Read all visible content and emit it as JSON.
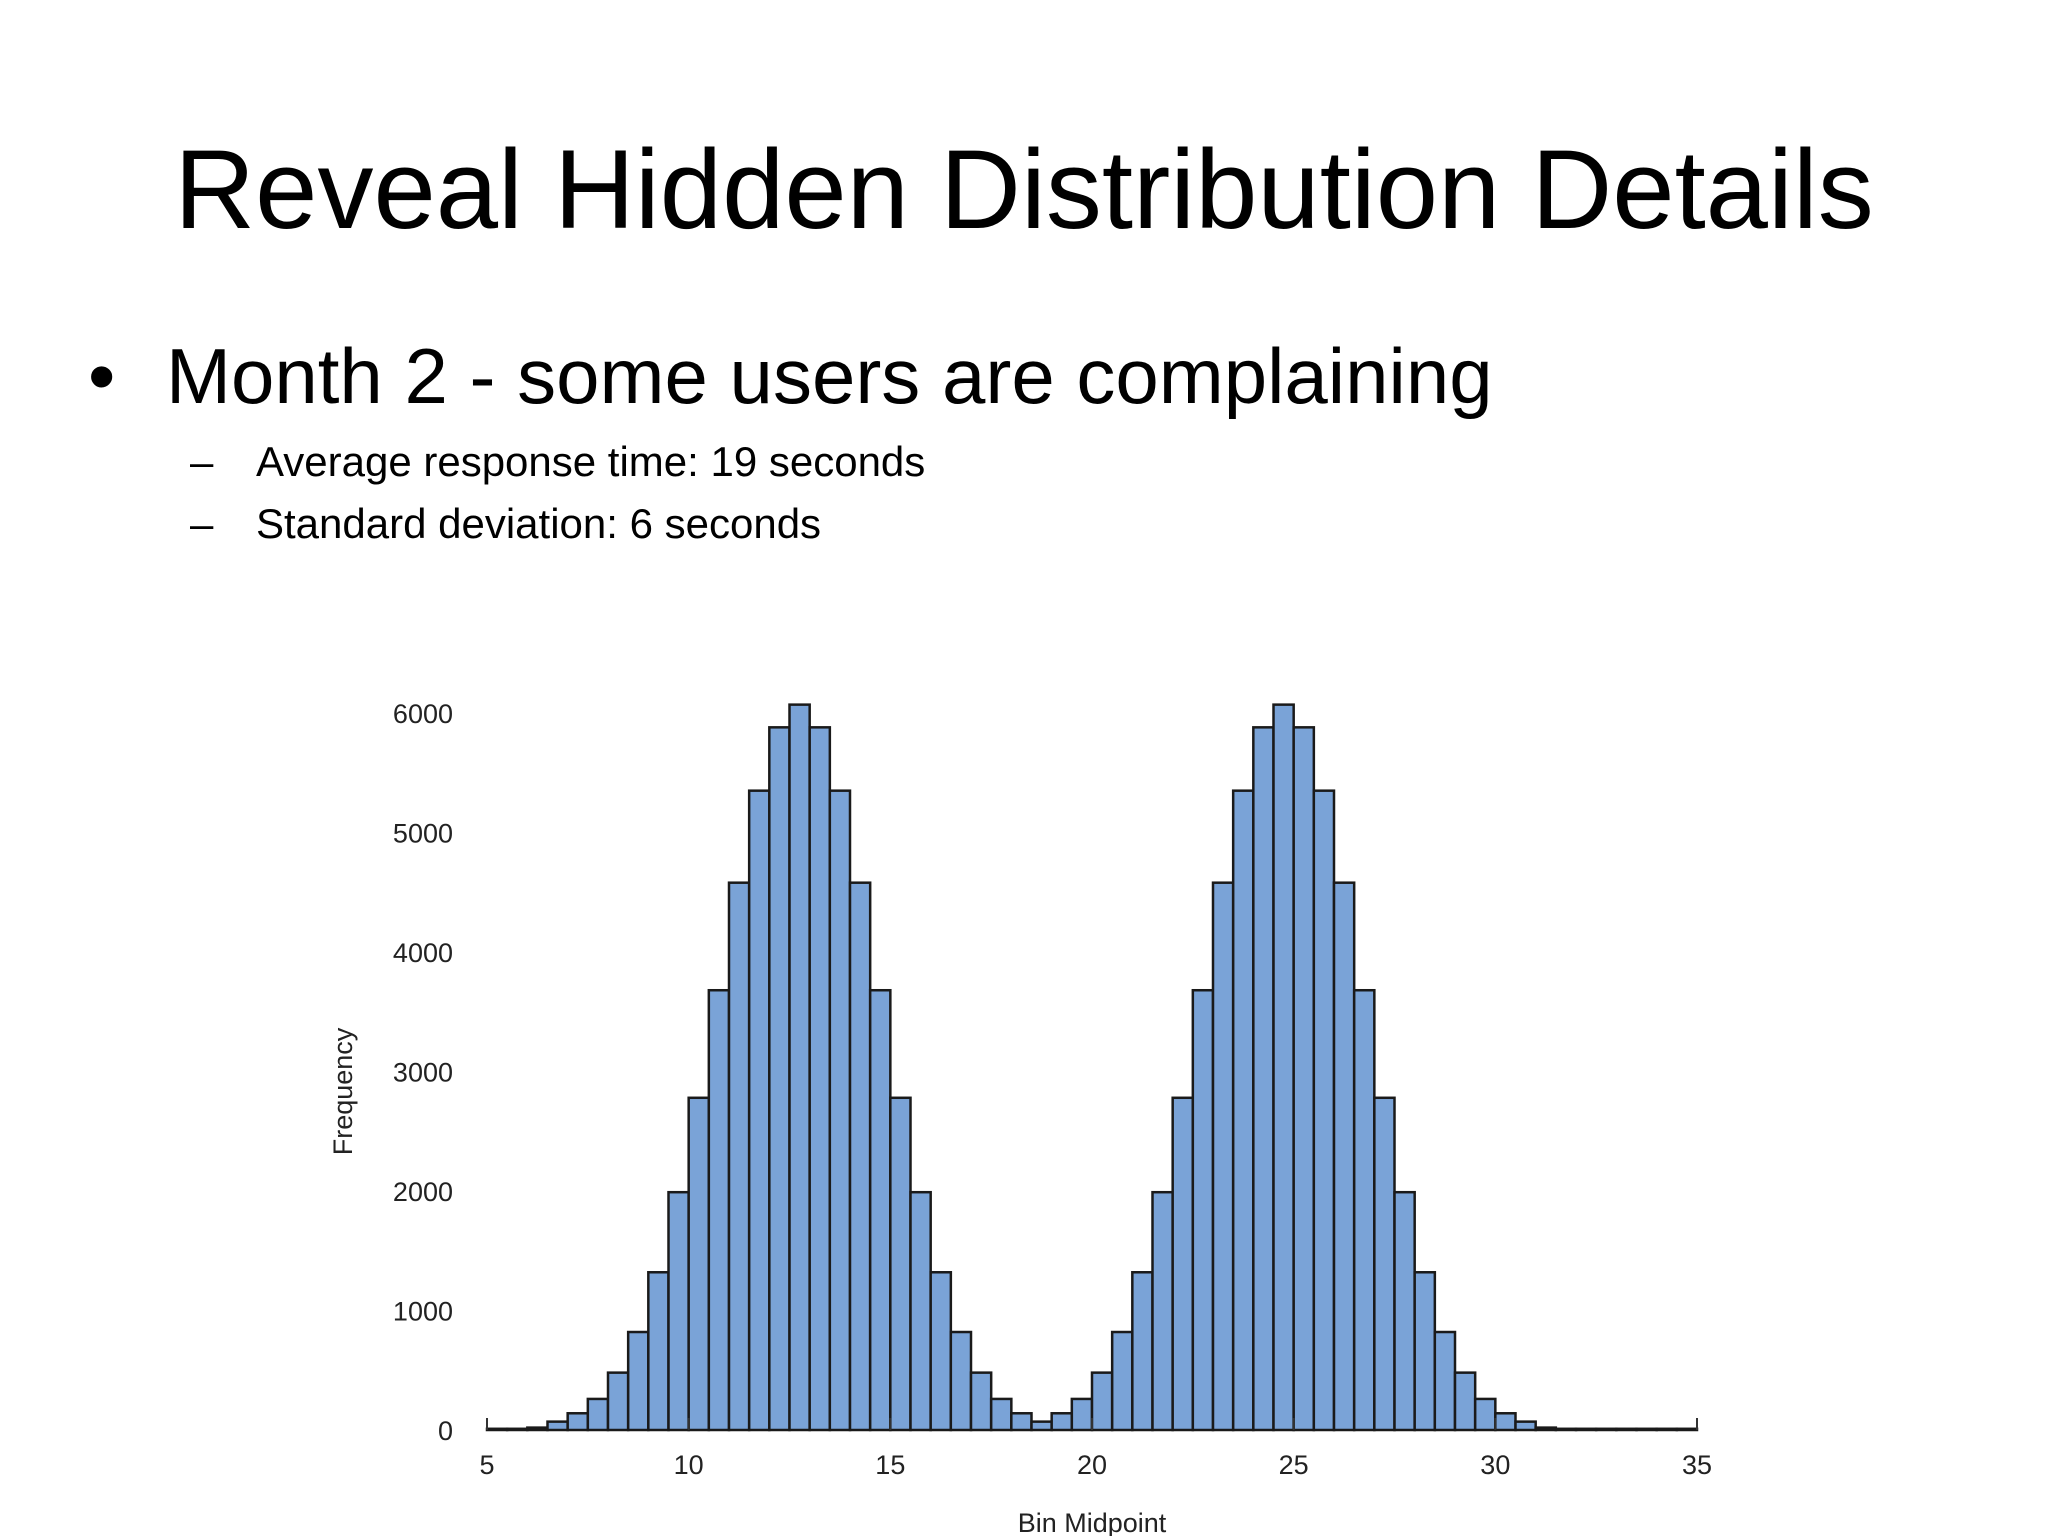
{
  "slide": {
    "title": "Reveal Hidden Distribution Details",
    "bullet": {
      "marker": "•",
      "text": "Month 2 - some users are complaining"
    },
    "sub_bullets": [
      {
        "marker": "–",
        "text": "Average response time: 19 seconds"
      },
      {
        "marker": "–",
        "text": "Standard deviation: 6 seconds"
      }
    ]
  },
  "chart_data": {
    "type": "bar",
    "title": "",
    "xlabel": "Bin Midpoint",
    "ylabel": "Frequency",
    "xlim": [
      5,
      35
    ],
    "ylim": [
      0,
      6000
    ],
    "xticks": [
      5,
      10,
      15,
      20,
      25,
      30,
      35
    ],
    "yticks": [
      0,
      1000,
      2000,
      3000,
      4000,
      5000,
      6000
    ],
    "bin_width": 0.5,
    "bar_color": "#7aa3d7",
    "edge_color": "#1a1a1a",
    "grid": false,
    "legend": "none",
    "x": [
      5.25,
      5.75,
      6.25,
      6.75,
      7.25,
      7.75,
      8.25,
      8.75,
      9.25,
      9.75,
      10.25,
      10.75,
      11.25,
      11.75,
      12.25,
      12.75,
      13.25,
      13.75,
      14.25,
      14.75,
      15.25,
      15.75,
      16.25,
      16.75,
      17.25,
      17.75,
      18.25,
      18.75,
      19.25,
      19.75,
      20.25,
      20.75,
      21.25,
      21.75,
      22.25,
      22.75,
      23.25,
      23.75,
      24.25,
      24.75,
      25.25,
      25.75,
      26.25,
      26.75,
      27.25,
      27.75,
      28.25,
      28.75,
      29.25,
      29.75,
      30.25,
      30.75,
      31.25,
      31.75,
      32.25,
      32.75,
      33.25,
      33.75,
      34.25,
      34.75
    ],
    "values": [
      10,
      10,
      20,
      70,
      140,
      260,
      480,
      820,
      1320,
      1990,
      2780,
      3680,
      4580,
      5350,
      5880,
      6070,
      5880,
      5350,
      4580,
      3680,
      2780,
      1990,
      1320,
      820,
      480,
      260,
      140,
      70,
      140,
      260,
      480,
      820,
      1320,
      1990,
      2780,
      3680,
      4580,
      5350,
      5880,
      6070,
      5880,
      5350,
      4580,
      3680,
      2780,
      1990,
      1320,
      820,
      480,
      260,
      140,
      70,
      20,
      10,
      10,
      10,
      10,
      10,
      10,
      10
    ]
  }
}
